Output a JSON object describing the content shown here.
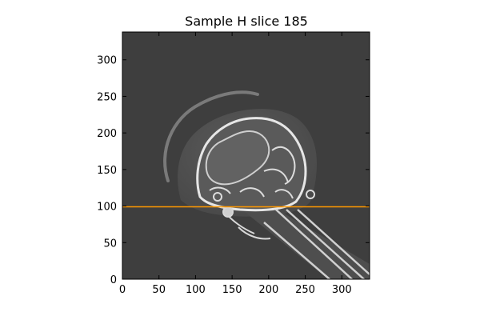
{
  "title": "Sample H slice 185",
  "axes": {
    "xlim": [
      0,
      338
    ],
    "ylim": [
      0,
      338
    ],
    "x_ticks": [
      0,
      50,
      100,
      150,
      200,
      250,
      300
    ],
    "y_ticks": [
      0,
      50,
      100,
      150,
      200,
      250,
      300
    ]
  },
  "image": {
    "description": "CT scan cross-section, grayscale",
    "colormap": "gray"
  },
  "overlay_line": {
    "y": 99,
    "color": "#ff9900"
  }
}
